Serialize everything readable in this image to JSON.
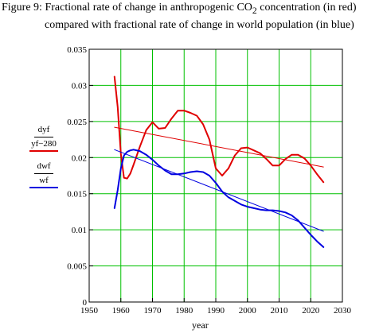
{
  "title": {
    "line1_prefix": "Figure 9: Fractional rate of change in anthropogenic CO",
    "line1_sub": "2",
    "line1_suffix": " concentration  (in red)",
    "line2": "compared with fractional rate of change in world population (in blue)"
  },
  "colors": {
    "co2": "#e00000",
    "population": "#0000e0",
    "grid": "#00c000",
    "axis": "#000000"
  },
  "chart_data": {
    "type": "line",
    "xlabel": "year",
    "ylabel_series": [
      {
        "numerator": "dyf",
        "denominator": "yf−280",
        "color": "#e00000"
      },
      {
        "numerator": "dwf",
        "denominator": "wf",
        "color": "#0000e0"
      }
    ],
    "xlim": [
      1950,
      2030
    ],
    "ylim": [
      0,
      0.035
    ],
    "xticks": [
      "1950",
      "1960",
      "1970",
      "1980",
      "1990",
      "2000",
      "2010",
      "2020",
      "2030"
    ],
    "yticks": [
      "0",
      "0.005",
      "0.01",
      "0.015",
      "0.02",
      "0.025",
      "0.03",
      "0.035"
    ],
    "grid": true,
    "series": [
      {
        "color": "#e00000",
        "style": "thick",
        "x": [
          1958,
          1959,
          1960,
          1961,
          1962,
          1963,
          1964,
          1966,
          1968,
          1970,
          1972,
          1974,
          1976,
          1978,
          1980,
          1982,
          1984,
          1986,
          1988,
          1990,
          1992,
          1994,
          1996,
          1998,
          2000,
          2002,
          2004,
          2006,
          2008,
          2010,
          2012,
          2014,
          2016,
          2018,
          2020,
          2022,
          2024
        ],
        "y": [
          0.0312,
          0.027,
          0.0205,
          0.0172,
          0.0171,
          0.0178,
          0.019,
          0.0215,
          0.0238,
          0.0249,
          0.024,
          0.0241,
          0.0254,
          0.0265,
          0.0265,
          0.0262,
          0.0258,
          0.0246,
          0.0225,
          0.0185,
          0.0175,
          0.0185,
          0.0203,
          0.0213,
          0.0214,
          0.021,
          0.0206,
          0.0198,
          0.0189,
          0.0189,
          0.0198,
          0.0204,
          0.0204,
          0.0199,
          0.0189,
          0.0177,
          0.0166
        ]
      },
      {
        "color": "#e00000",
        "style": "thin",
        "x": [
          1958,
          2024
        ],
        "y": [
          0.0242,
          0.0187
        ]
      },
      {
        "color": "#0000e0",
        "style": "thick",
        "x": [
          1958,
          1959,
          1960,
          1961,
          1962,
          1963,
          1964,
          1966,
          1968,
          1970,
          1972,
          1974,
          1976,
          1978,
          1980,
          1982,
          1984,
          1986,
          1988,
          1990,
          1992,
          1994,
          1996,
          1998,
          2000,
          2002,
          2004,
          2006,
          2008,
          2010,
          2012,
          2014,
          2016,
          2018,
          2020,
          2022,
          2024
        ],
        "y": [
          0.013,
          0.0155,
          0.0185,
          0.0203,
          0.0208,
          0.021,
          0.0211,
          0.0209,
          0.0204,
          0.0197,
          0.0189,
          0.0182,
          0.0177,
          0.0177,
          0.0178,
          0.018,
          0.0181,
          0.018,
          0.0175,
          0.0165,
          0.0153,
          0.0145,
          0.014,
          0.0135,
          0.0132,
          0.013,
          0.0128,
          0.0127,
          0.0127,
          0.0126,
          0.0124,
          0.012,
          0.0113,
          0.0103,
          0.0093,
          0.0084,
          0.0076
        ]
      },
      {
        "color": "#0000e0",
        "style": "thin",
        "x": [
          1958,
          2024
        ],
        "y": [
          0.0211,
          0.0098
        ]
      }
    ]
  }
}
